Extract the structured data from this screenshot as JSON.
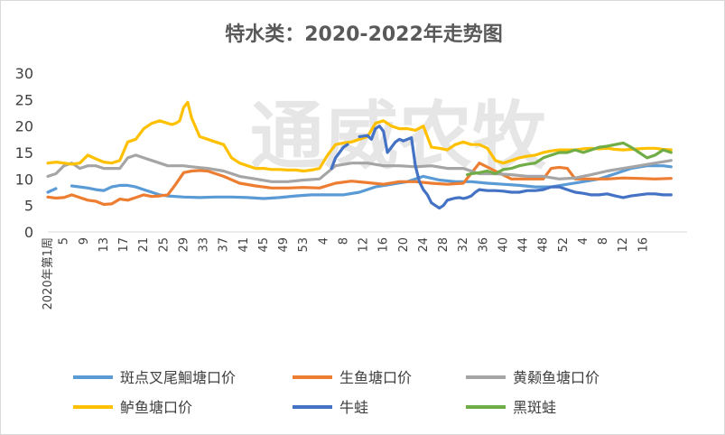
{
  "chart_data": {
    "type": "line",
    "title": "特水类：2020-2022年走势图",
    "watermark": "通威农牧",
    "ylim": [
      0,
      30
    ],
    "yticks": [
      0,
      5,
      10,
      15,
      20,
      25,
      30
    ],
    "first_xlabel": "2020年第1周",
    "xtick_labels": [
      "5",
      "9",
      "13",
      "17",
      "21",
      "25",
      "29",
      "33",
      "37",
      "41",
      "45",
      "49",
      "53",
      "4",
      "8",
      "12",
      "16",
      "20",
      "24",
      "28",
      "32",
      "36",
      "40",
      "44",
      "48",
      "52",
      "4",
      "8",
      "12",
      "16"
    ],
    "grid": false,
    "legend_position": "bottom",
    "series": [
      {
        "name": "斑点叉尾鮰塘口价",
        "color": "#5B9BD5",
        "x": [
          0,
          2,
          4,
          6,
          8,
          10,
          12,
          14,
          16,
          18,
          20,
          22,
          24,
          26,
          28,
          30,
          34,
          38,
          42,
          46,
          50,
          54,
          58,
          62,
          66,
          70,
          74,
          78,
          82,
          86,
          90,
          94,
          98,
          102,
          106,
          110,
          114,
          118,
          122,
          126,
          130,
          134,
          138,
          142,
          146,
          150,
          154,
          156
        ],
        "y": [
          7.5,
          8.2,
          null,
          8.7,
          8.5,
          8.3,
          8.0,
          7.8,
          8.5,
          8.8,
          8.8,
          8.5,
          8.0,
          7.5,
          7.0,
          6.8,
          6.6,
          6.5,
          6.6,
          6.6,
          6.5,
          6.3,
          6.5,
          6.8,
          7.0,
          7.0,
          7.0,
          7.5,
          8.5,
          9.0,
          9.5,
          10.5,
          9.8,
          9.5,
          9.5,
          9.2,
          9.0,
          8.8,
          8.5,
          8.5,
          9.0,
          9.5,
          10.0,
          11.0,
          12.0,
          12.5,
          12.5,
          12.3
        ]
      },
      {
        "name": "生鱼塘口价",
        "color": "#ED7D31",
        "x": [
          0,
          2,
          4,
          6,
          8,
          10,
          12,
          14,
          16,
          18,
          20,
          22,
          24,
          26,
          28,
          30,
          32,
          34,
          36,
          38,
          40,
          44,
          48,
          52,
          56,
          60,
          64,
          68,
          72,
          76,
          80,
          84,
          88,
          92,
          96,
          100,
          104,
          108,
          112,
          116,
          120,
          124,
          126,
          128,
          130,
          132,
          134,
          136,
          140,
          144,
          148,
          152,
          156
        ],
        "y": [
          6.6,
          6.4,
          6.5,
          7.0,
          6.5,
          6.0,
          5.8,
          5.2,
          5.3,
          6.2,
          6.0,
          6.5,
          7.0,
          6.7,
          6.8,
          7.0,
          9.0,
          11.2,
          11.5,
          11.6,
          11.5,
          10.5,
          9.2,
          8.7,
          8.3,
          8.3,
          8.4,
          8.3,
          9.2,
          9.6,
          9.3,
          9.0,
          9.5,
          9.5,
          9.2,
          9.0,
          9.2,
          13.0,
          11.5,
          10.0,
          10.0,
          10.0,
          12.0,
          12.2,
          12.0,
          10.0,
          10.0,
          10.0,
          10.0,
          10.2,
          10.1,
          10.0,
          10.1
        ]
      },
      {
        "name": "黄颡鱼塘口价",
        "color": "#A5A5A5",
        "x": [
          0,
          2,
          4,
          6,
          8,
          10,
          12,
          14,
          16,
          18,
          20,
          22,
          24,
          26,
          28,
          30,
          32,
          34,
          36,
          40,
          44,
          48,
          52,
          56,
          60,
          64,
          68,
          72,
          76,
          80,
          84,
          88,
          92,
          96,
          100,
          104,
          108,
          112,
          116,
          120,
          124,
          128,
          132,
          136,
          140,
          144,
          148,
          152,
          156
        ],
        "y": [
          10.5,
          11.0,
          12.5,
          13.0,
          12.0,
          12.5,
          12.5,
          12.0,
          12.0,
          12.0,
          14.0,
          14.5,
          14.0,
          13.5,
          13.0,
          12.5,
          12.5,
          12.5,
          12.3,
          12.0,
          11.5,
          10.5,
          10.0,
          9.5,
          9.5,
          9.8,
          10.0,
          12.5,
          13.0,
          13.0,
          12.5,
          12.5,
          12.3,
          12.5,
          12.0,
          12.0,
          11.0,
          11.0,
          10.8,
          10.5,
          10.5,
          10.0,
          10.2,
          10.8,
          11.5,
          12.0,
          12.5,
          13.0,
          13.5
        ]
      },
      {
        "name": "鲈鱼塘口价",
        "color": "#FFC000",
        "x": [
          0,
          2,
          4,
          6,
          8,
          10,
          12,
          14,
          16,
          18,
          20,
          22,
          24,
          26,
          28,
          30,
          31,
          32,
          33,
          34,
          35,
          36,
          38,
          40,
          42,
          44,
          46,
          48,
          50,
          52,
          54,
          56,
          58,
          60,
          62,
          64,
          66,
          68,
          70,
          72,
          74,
          76,
          78,
          80,
          82,
          84,
          86,
          88,
          90,
          92,
          94,
          96,
          98,
          100,
          102,
          104,
          106,
          108,
          110,
          112,
          114,
          116,
          118,
          120,
          122,
          124,
          126,
          128,
          130,
          132,
          134,
          136,
          138,
          140,
          142,
          144,
          146,
          148,
          150,
          152,
          154,
          156
        ],
        "y": [
          13.0,
          13.2,
          13.0,
          12.8,
          13.0,
          14.5,
          13.8,
          13.2,
          13.0,
          13.5,
          17.0,
          17.5,
          19.5,
          20.5,
          21.0,
          20.5,
          20.3,
          20.5,
          21.0,
          23.5,
          24.5,
          21.5,
          18.0,
          17.5,
          17.0,
          16.5,
          14.0,
          13.0,
          12.5,
          12.0,
          12.0,
          11.8,
          11.8,
          11.7,
          11.7,
          11.5,
          11.7,
          12.0,
          14.5,
          16.5,
          16.8,
          17.0,
          17.5,
          18.0,
          20.5,
          21.0,
          20.0,
          19.5,
          19.5,
          19.2,
          20.0,
          16.0,
          15.8,
          15.5,
          16.5,
          17.0,
          16.5,
          16.5,
          15.8,
          13.5,
          13.0,
          13.5,
          14.0,
          14.3,
          14.5,
          15.0,
          15.3,
          15.5,
          15.5,
          15.5,
          15.7,
          15.8,
          15.7,
          15.8,
          15.6,
          15.5,
          15.6,
          15.7,
          15.8,
          15.8,
          15.6,
          15.5
        ]
      },
      {
        "name": "牛蛙",
        "color": "#4472C4",
        "x": [
          71,
          72,
          73,
          74,
          75,
          76,
          78,
          80,
          81,
          82,
          83,
          84,
          85,
          86,
          87,
          88,
          89,
          90,
          91,
          92,
          93,
          94,
          95,
          96,
          97,
          98,
          99,
          100,
          101,
          102,
          103,
          104,
          105,
          106,
          107,
          108,
          110,
          112,
          114,
          116,
          118,
          120,
          122,
          124,
          126,
          128,
          130,
          132,
          134,
          136,
          138,
          140,
          142,
          144,
          146,
          148,
          150,
          152,
          154,
          156
        ],
        "y": [
          12.0,
          14.0,
          15.0,
          16.0,
          16.5,
          null,
          18.0,
          18.2,
          17.5,
          19.5,
          20.0,
          19.0,
          15.0,
          16.0,
          17.0,
          17.5,
          17.2,
          17.5,
          17.8,
          12.5,
          9.5,
          8.0,
          7.0,
          5.5,
          5.0,
          4.5,
          5.0,
          6.0,
          6.2,
          6.4,
          6.5,
          6.3,
          6.5,
          6.8,
          7.5,
          8.0,
          7.8,
          7.8,
          7.7,
          7.5,
          7.5,
          7.8,
          7.8,
          8.0,
          8.5,
          8.5,
          8.0,
          7.5,
          7.3,
          7.0,
          7.0,
          7.2,
          6.8,
          6.5,
          6.8,
          7.0,
          7.2,
          7.2,
          7.0,
          7.0
        ]
      },
      {
        "name": "黑斑蛙",
        "color": "#70AD47",
        "x": [
          105,
          106,
          108,
          110,
          112,
          114,
          116,
          118,
          120,
          122,
          124,
          126,
          128,
          130,
          132,
          134,
          136,
          138,
          140,
          142,
          144,
          146,
          148,
          150,
          152,
          154,
          156
        ],
        "y": [
          10.8,
          11.0,
          11.2,
          11.5,
          11.0,
          11.8,
          12.0,
          12.5,
          12.8,
          13.0,
          14.0,
          14.5,
          15.0,
          15.0,
          15.5,
          15.0,
          15.5,
          16.0,
          16.2,
          16.5,
          16.8,
          16.0,
          15.0,
          14.0,
          14.5,
          15.5,
          15.0
        ]
      }
    ]
  }
}
